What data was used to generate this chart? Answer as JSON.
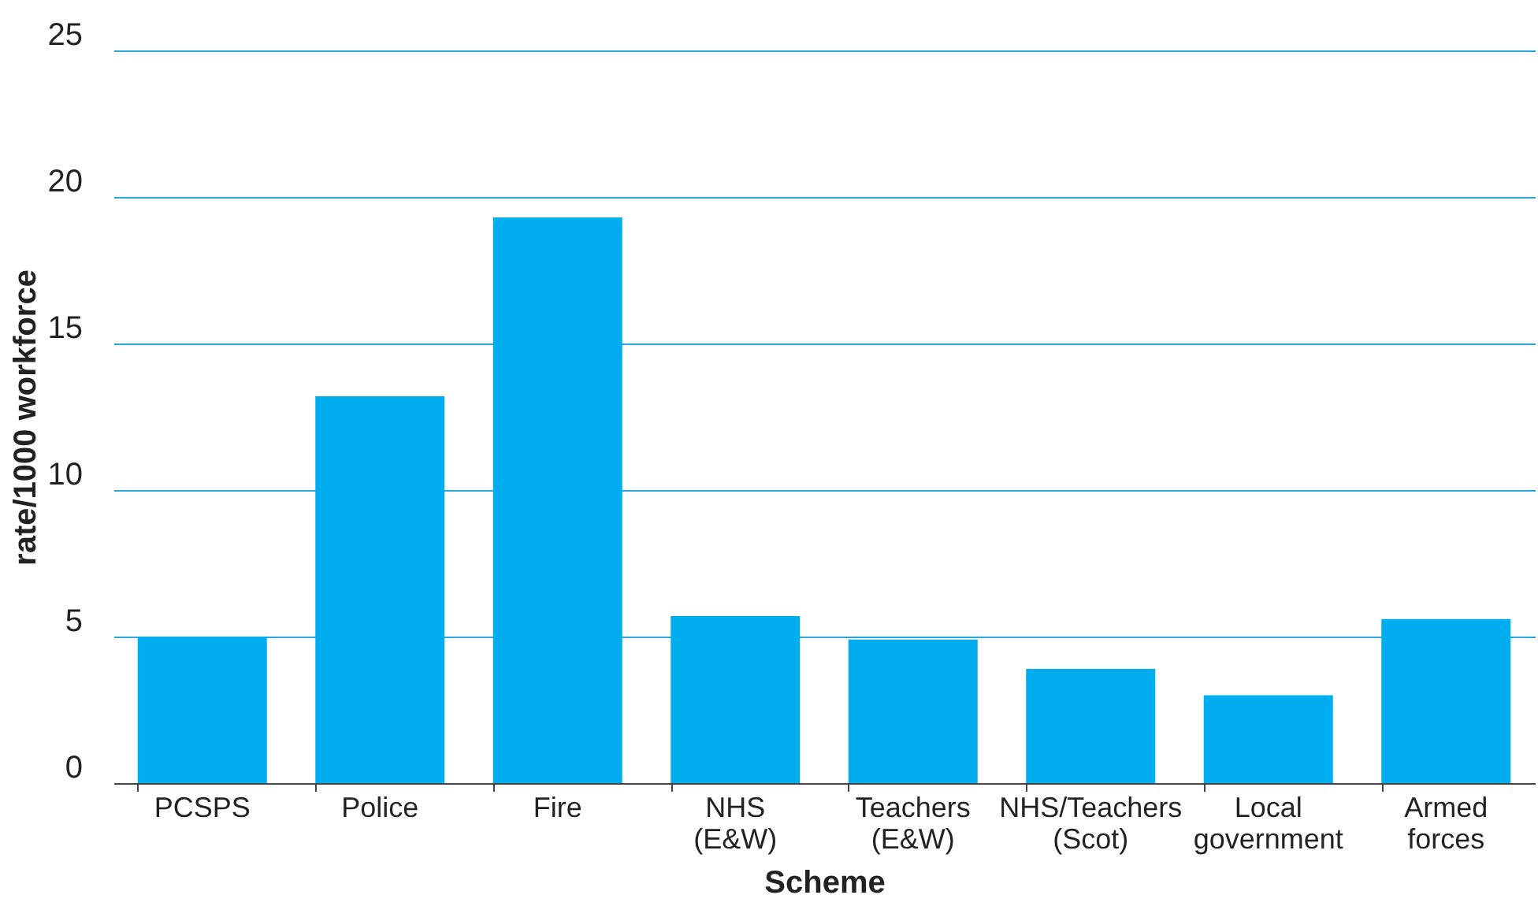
{
  "chart_data": {
    "type": "bar",
    "xlabel": "Scheme",
    "ylabel": "rate/1000 workforce",
    "categories": [
      "PCSPS",
      "Police",
      "Fire",
      "NHS (E&W)",
      "Teachers (E&W)",
      "NHS/Teachers (Scot)",
      "Local government",
      "Armed forces"
    ],
    "values": [
      5.0,
      13.2,
      19.3,
      5.7,
      4.9,
      3.9,
      3.0,
      5.6
    ],
    "color": "#00aeef",
    "ylim": [
      0,
      25
    ],
    "yticks": [
      0,
      5,
      10,
      15,
      20,
      25
    ],
    "grid": "y"
  }
}
